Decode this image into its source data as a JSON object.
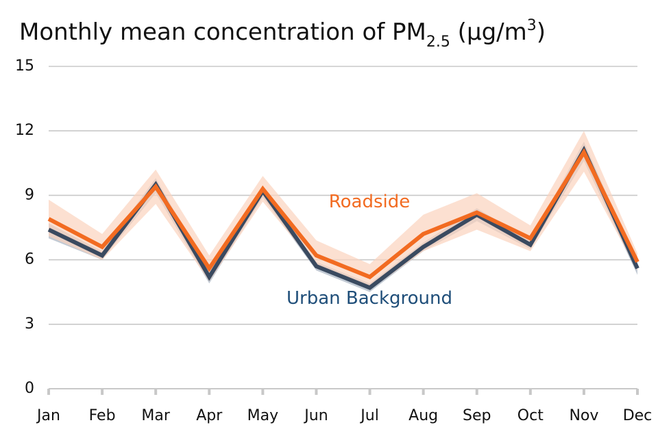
{
  "chart_data": {
    "type": "line",
    "title": {
      "main": "Monthly mean concentration of PM",
      "subscript": "2.5",
      "unit_open": " (µg/m",
      "superscript": "3",
      "unit_close": ")"
    },
    "xlabel": "",
    "ylabel": "",
    "ylim": [
      0,
      15
    ],
    "yticks": [
      0,
      3,
      6,
      9,
      12,
      15
    ],
    "grid": true,
    "categories": [
      "Jan",
      "Feb",
      "Mar",
      "Apr",
      "May",
      "Jun",
      "Jul",
      "Aug",
      "Sep",
      "Oct",
      "Nov",
      "Dec"
    ],
    "series": [
      {
        "name": "Urban Background",
        "color": "#3a4a60",
        "band_color": "#9aa6b8",
        "label_color": "#1f4e79",
        "values": [
          7.4,
          6.2,
          9.5,
          5.2,
          9.2,
          5.7,
          4.7,
          6.6,
          8.1,
          6.7,
          11.1,
          5.6
        ],
        "lower": [
          7.0,
          6.0,
          9.1,
          4.9,
          8.9,
          5.5,
          4.5,
          6.4,
          7.8,
          6.5,
          10.6,
          5.3
        ],
        "upper": [
          7.7,
          6.4,
          9.8,
          5.4,
          9.4,
          5.9,
          4.9,
          6.8,
          8.4,
          6.9,
          11.5,
          5.8
        ]
      },
      {
        "name": "Roadside",
        "color": "#f26b21",
        "band_color": "#fbd3bd",
        "label_color": "#f26b21",
        "values": [
          7.9,
          6.6,
          9.4,
          5.6,
          9.3,
          6.2,
          5.2,
          7.2,
          8.2,
          7.0,
          11.0,
          5.9
        ],
        "lower": [
          7.1,
          6.0,
          8.6,
          5.0,
          8.7,
          5.7,
          4.6,
          6.4,
          7.4,
          6.4,
          10.1,
          5.5
        ],
        "upper": [
          8.8,
          7.2,
          10.2,
          6.2,
          9.9,
          6.9,
          5.8,
          8.1,
          9.1,
          7.6,
          12.0,
          6.3
        ]
      }
    ]
  }
}
